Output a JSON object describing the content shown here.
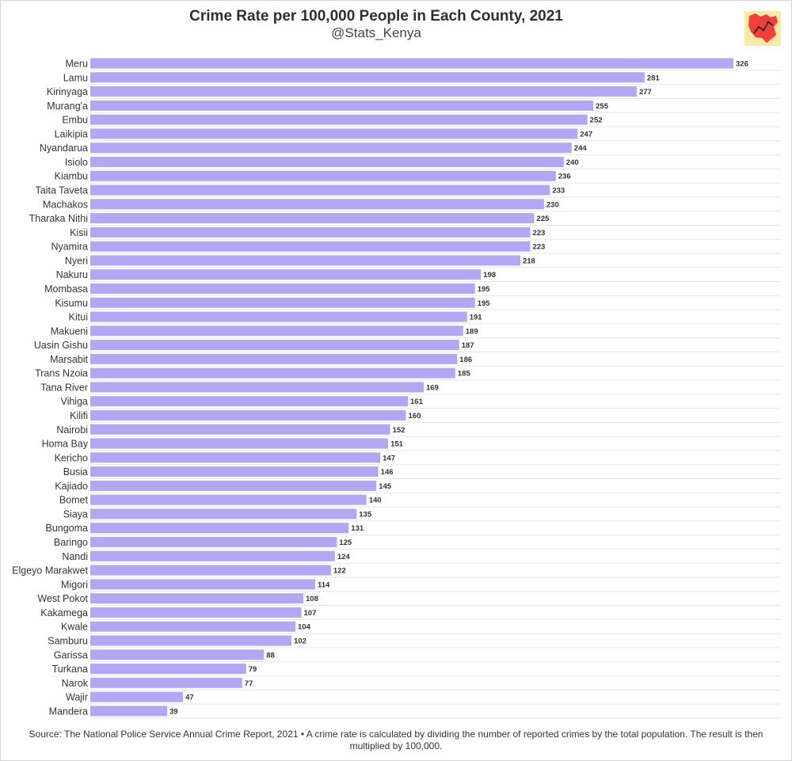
{
  "title": "Crime Rate per 100,000 People in Each County, 2021",
  "subtitle": "@Stats_Kenya",
  "source": "Source: The National Police Service Annual Crime Report, 2021 • A crime rate is calculated by dividing the number of reported crimes by the total population. The result is then multiplied by 100,000.",
  "colors": {
    "bar": "#b3a6f2",
    "grid": "#e6e6e6",
    "logo_bg": "#fde9a7",
    "logo_map": "#f0403a"
  },
  "logo_icon": "kenya-map-chart-icon",
  "chart_data": {
    "type": "bar",
    "orientation": "horizontal",
    "categories": [
      "Meru",
      "Lamu",
      "Kirinyaga",
      "Murang'a",
      "Embu",
      "Laikipia",
      "Nyandarua",
      "Isiolo",
      "Kiambu",
      "Taita Taveta",
      "Machakos",
      "Tharaka Nithi",
      "Kisii",
      "Nyamira",
      "Nyeri",
      "Nakuru",
      "Mombasa",
      "Kisumu",
      "Kitui",
      "Makueni",
      "Uasin Gishu",
      "Marsabit",
      "Trans Nzoia",
      "Tana River",
      "Vihiga",
      "Kilifi",
      "Nairobi",
      "Homa Bay",
      "Kericho",
      "Busia",
      "Kajiado",
      "Bomet",
      "Siaya",
      "Bungoma",
      "Baringo",
      "Nandi",
      "Elgeyo Marakwet",
      "Migori",
      "West Pokot",
      "Kakamega",
      "Kwale",
      "Samburu",
      "Garissa",
      "Turkana",
      "Narok",
      "Wajir",
      "Mandera"
    ],
    "values": [
      326,
      281,
      277,
      255,
      252,
      247,
      244,
      240,
      236,
      233,
      230,
      225,
      223,
      223,
      218,
      198,
      195,
      195,
      191,
      189,
      187,
      186,
      185,
      169,
      161,
      160,
      152,
      151,
      147,
      146,
      145,
      140,
      135,
      131,
      125,
      124,
      122,
      114,
      108,
      107,
      104,
      102,
      88,
      79,
      77,
      47,
      39
    ],
    "data_labels": true,
    "xlim": [
      0,
      326
    ],
    "grid": true
  }
}
